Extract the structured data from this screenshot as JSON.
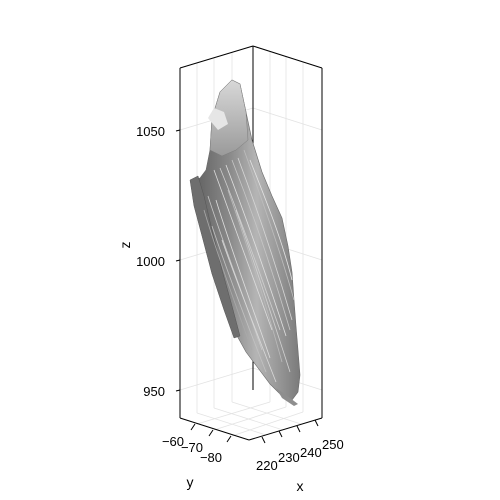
{
  "chart_data": {
    "type": "3d-surface",
    "xlabel": "x",
    "ylabel": "y",
    "zlabel": "z",
    "x_ticks": [
      220,
      230,
      240,
      250
    ],
    "y_ticks": [
      -60,
      -70,
      -80
    ],
    "z_ticks": [
      950,
      1000,
      1050
    ],
    "xlim": [
      216,
      252
    ],
    "ylim": [
      -58,
      -88
    ],
    "zlim": [
      940,
      1075
    ],
    "grid": true,
    "surface_color": "#8c8c8c",
    "surface_highlight": "#d9d9d9",
    "surface_shadow": "#5a5a5a"
  }
}
